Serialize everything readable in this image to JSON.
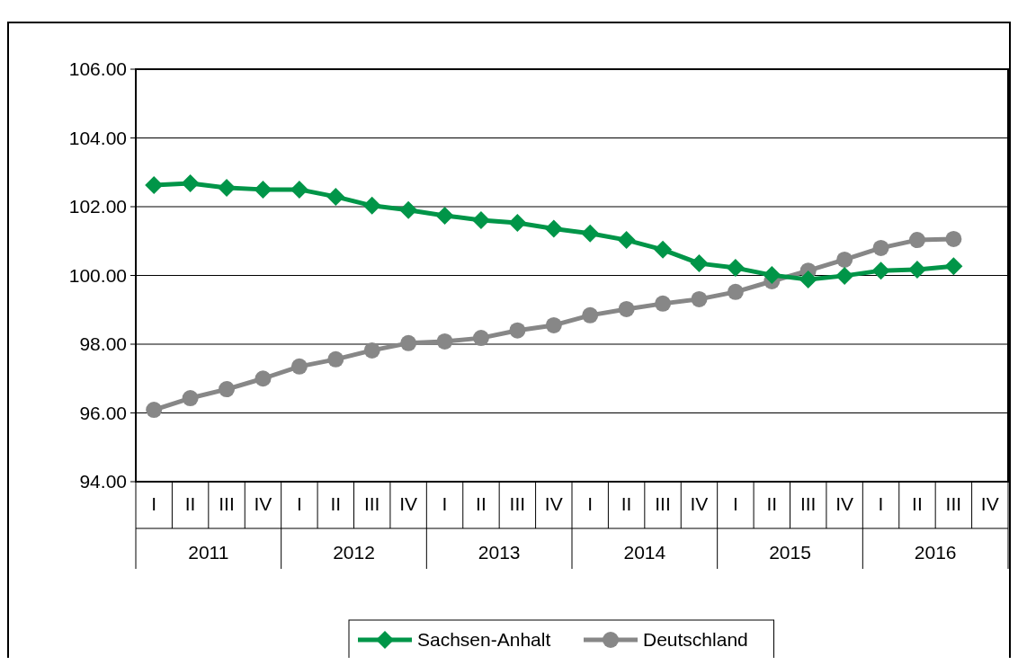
{
  "chart_data": {
    "type": "line",
    "categories": [
      "I",
      "II",
      "III",
      "IV",
      "I",
      "II",
      "III",
      "IV",
      "I",
      "II",
      "III",
      "IV",
      "I",
      "II",
      "III",
      "IV",
      "I",
      "II",
      "III",
      "IV",
      "I",
      "II",
      "III",
      "IV"
    ],
    "annotations": [
      "2011",
      "2012",
      "2013",
      "2014",
      "2015",
      "2016"
    ],
    "series": [
      {
        "name": "Sachsen-Anhalt",
        "color": "#009548",
        "marker": "diamond",
        "values": [
          102.63,
          102.68,
          102.55,
          102.5,
          102.5,
          102.29,
          102.03,
          101.9,
          101.74,
          101.61,
          101.53,
          101.36,
          101.22,
          101.03,
          100.75,
          100.35,
          100.22,
          100.01,
          99.88,
          99.99,
          100.14,
          100.17,
          100.27,
          null
        ]
      },
      {
        "name": "Deutschland",
        "color": "#878787",
        "marker": "circle",
        "values": [
          96.09,
          96.43,
          96.69,
          97.0,
          97.35,
          97.56,
          97.82,
          98.03,
          98.08,
          98.18,
          98.4,
          98.55,
          98.84,
          99.02,
          99.18,
          99.31,
          99.52,
          99.83,
          100.14,
          100.46,
          100.8,
          101.03,
          101.06,
          null
        ]
      }
    ],
    "ylim": [
      94,
      106
    ],
    "yticks": [
      {
        "value": 94,
        "label": "94.00"
      },
      {
        "value": 96,
        "label": "96.00"
      },
      {
        "value": 98,
        "label": "98.00"
      },
      {
        "value": 100,
        "label": "100.00"
      },
      {
        "value": 102,
        "label": "102.00"
      },
      {
        "value": 104,
        "label": "104.00"
      },
      {
        "value": 106,
        "label": "106.00"
      }
    ],
    "grid": "y",
    "legend": "bottom",
    "line_style": "solid"
  }
}
